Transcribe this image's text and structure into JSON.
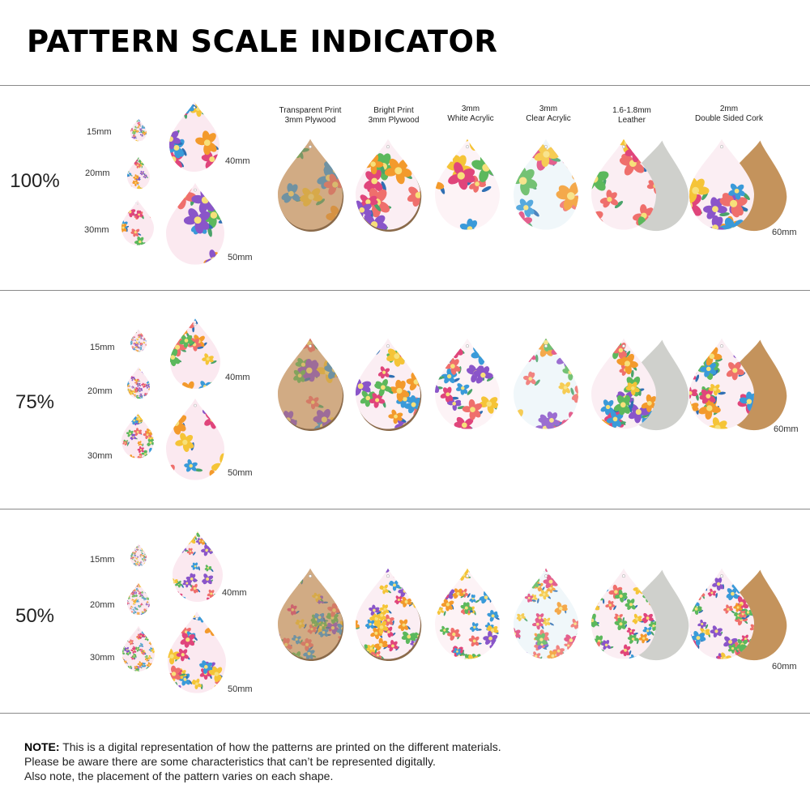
{
  "title": "PATTERN SCALE INDICATOR",
  "columns": [
    {
      "line1": "Transparent Print",
      "line2": "3mm Plywood",
      "material": "plywood-transparent"
    },
    {
      "line1": "Bright Print",
      "line2": "3mm Plywood",
      "material": "plywood-bright"
    },
    {
      "line1": "3mm",
      "line2": "White Acrylic",
      "material": "white-acrylic"
    },
    {
      "line1": "3mm",
      "line2": "Clear Acrylic",
      "material": "clear-acrylic"
    },
    {
      "line1": "1.6-1.8mm",
      "line2": "Leather",
      "material": "leather"
    },
    {
      "line1": "2mm",
      "line2": "Double Sided Cork",
      "material": "cork"
    }
  ],
  "sections": [
    {
      "scale": "100%",
      "sizes": [
        "15mm",
        "20mm",
        "30mm",
        "40mm",
        "50mm"
      ],
      "large_size": "60mm",
      "pattern_scale": 1.0
    },
    {
      "scale": "75%",
      "sizes": [
        "15mm",
        "20mm",
        "30mm",
        "40mm",
        "50mm"
      ],
      "large_size": "60mm",
      "pattern_scale": 0.75
    },
    {
      "scale": "50%",
      "sizes": [
        "15mm",
        "20mm",
        "30mm",
        "40mm",
        "50mm"
      ],
      "large_size": "60mm",
      "pattern_scale": 0.5
    }
  ],
  "note": {
    "label": "NOTE:",
    "line1": " This is a digital representation of how the patterns are printed on the different materials.",
    "line2": "Please be aware there are some characteristics that can’t be represented digitally.",
    "line3": "Also note, the placement of the pattern varies on each shape."
  },
  "colors": {
    "leather_back": "#cfd0cc",
    "cork_back": "#c4935c",
    "plywood_edge": "#8a6a4a",
    "flowers": [
      "#e0457b",
      "#f39a2c",
      "#8a55c9",
      "#3a9ad9",
      "#f5c437",
      "#ef6f6c",
      "#5cb85c"
    ]
  }
}
